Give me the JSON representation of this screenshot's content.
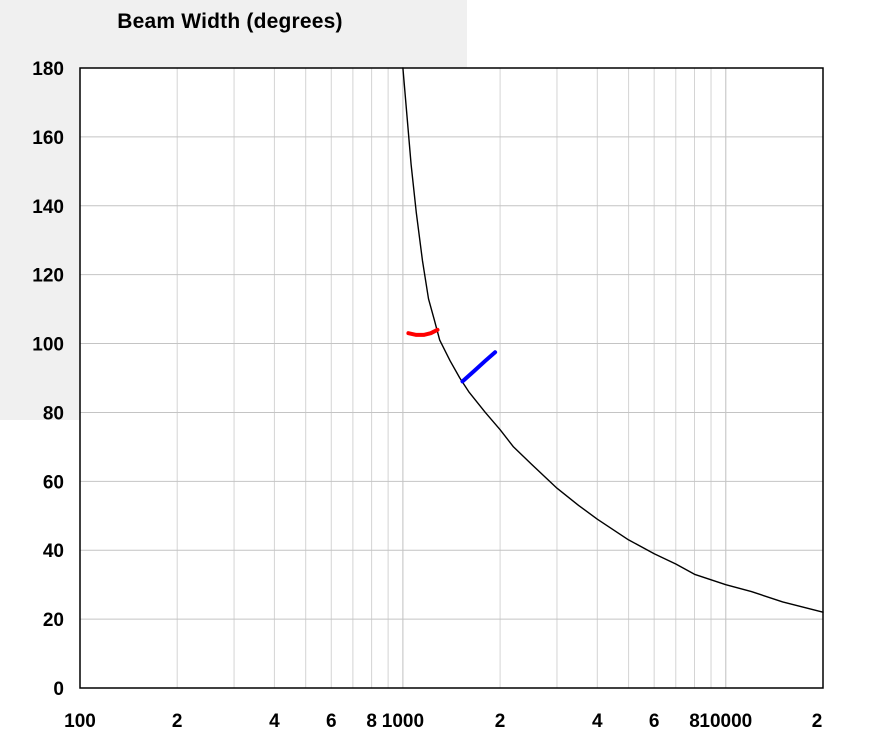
{
  "chart_data": {
    "type": "line",
    "title": "Beam Width (degrees)",
    "xscale": "log",
    "xlim": [
      100,
      20000
    ],
    "ylim": [
      0,
      180
    ],
    "grid": true,
    "x_tick_labels": [
      {
        "value": 100,
        "label": "100"
      },
      {
        "value": 200,
        "label": "2"
      },
      {
        "value": 400,
        "label": "4"
      },
      {
        "value": 600,
        "label": "6"
      },
      {
        "value": 800,
        "label": "8"
      },
      {
        "value": 1000,
        "label": "1000"
      },
      {
        "value": 2000,
        "label": "2"
      },
      {
        "value": 4000,
        "label": "4"
      },
      {
        "value": 6000,
        "label": "6"
      },
      {
        "value": 8000,
        "label": "8"
      },
      {
        "value": 10000,
        "label": "10000"
      },
      {
        "value": 20000,
        "label": "2"
      }
    ],
    "y_ticks": [
      0,
      20,
      40,
      60,
      80,
      100,
      120,
      140,
      160,
      180
    ],
    "series": [
      {
        "color": "#000000",
        "x": [
          1000,
          1030,
          1060,
          1100,
          1150,
          1200,
          1250,
          1300,
          1400,
          1500,
          1600,
          1800,
          2000,
          2200,
          2500,
          3000,
          3500,
          4000,
          5000,
          6000,
          7000,
          8000,
          10000,
          12000,
          15000,
          20000
        ],
        "y": [
          180,
          166,
          152,
          138,
          124,
          113,
          107,
          101,
          95,
          90,
          86,
          80,
          75,
          70,
          65,
          58,
          53,
          49,
          43,
          39,
          36,
          33,
          30,
          28,
          25,
          22
        ]
      },
      {
        "color": "#ff0000",
        "x": [
          1040,
          1100,
          1160,
          1220,
          1280
        ],
        "y": [
          103,
          102.5,
          102.5,
          103,
          104
        ]
      },
      {
        "color": "#0000ff",
        "x": [
          1530,
          1660,
          1800,
          1930
        ],
        "y": [
          89,
          92,
          95,
          97.5
        ]
      }
    ]
  }
}
